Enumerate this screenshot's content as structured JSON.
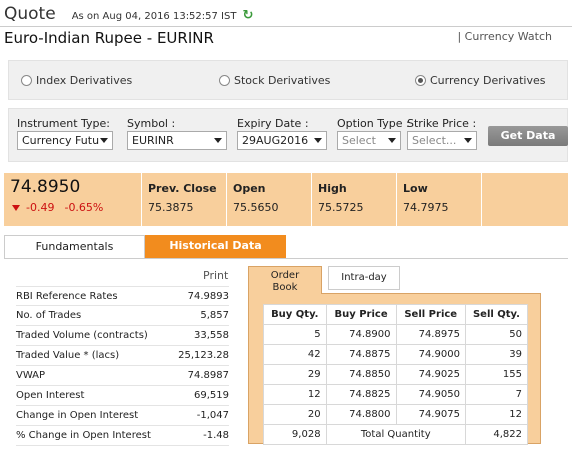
{
  "header": {
    "title": "Quote",
    "as_on": "As on Aug 04, 2016 13:52:57 IST",
    "instrument_name": "Euro-Indian Rupee - EURINR",
    "currency_watch": "| Currency Watch"
  },
  "segments": [
    {
      "label": "Index Derivatives",
      "selected": false
    },
    {
      "label": "Stock Derivatives",
      "selected": false
    },
    {
      "label": "Currency Derivatives",
      "selected": true
    }
  ],
  "filters": {
    "instrument_type": {
      "label": "Instrument Type:",
      "value": "Currency Futu"
    },
    "symbol": {
      "label": "Symbol :",
      "value": "EURINR"
    },
    "expiry_date": {
      "label": "Expiry Date :",
      "value": "29AUG2016"
    },
    "option_type": {
      "label": "Option Type :",
      "value": "Select"
    },
    "strike_price": {
      "label": "Strike Price :",
      "value": "Select..."
    },
    "get_data": "Get Data"
  },
  "quote": {
    "price": "74.8950",
    "change": "-0.49",
    "change_pct": "-0.65%",
    "prev_close": {
      "label": "Prev. Close",
      "value": "75.3875"
    },
    "open": {
      "label": "Open",
      "value": "75.5650"
    },
    "high": {
      "label": "High",
      "value": "75.5725"
    },
    "low": {
      "label": "Low",
      "value": "74.7975"
    }
  },
  "tabs": {
    "fundamentals": "Fundamentals",
    "historical": "Historical Data"
  },
  "print_label": "Print",
  "fundamentals": [
    {
      "label": "RBI Reference Rates",
      "value": "74.9893"
    },
    {
      "label": "No. of Trades",
      "value": "5,857"
    },
    {
      "label": "Traded Volume (contracts)",
      "value": "33,558"
    },
    {
      "label": "Traded Value * (lacs)",
      "value": "25,123.28"
    },
    {
      "label": "VWAP",
      "value": "74.8987"
    },
    {
      "label": "Open Interest",
      "value": "69,519"
    },
    {
      "label": "Change in Open Interest",
      "value": "-1,047"
    },
    {
      "label": "% Change in Open Interest",
      "value": "-1.48"
    }
  ],
  "order_book": {
    "tab_order_book_line1": "Order",
    "tab_order_book_line2": "Book",
    "tab_intraday": "Intra-day",
    "columns": [
      "Buy Qty.",
      "Buy Price",
      "Sell Price",
      "Sell Qty."
    ],
    "rows": [
      [
        "5",
        "74.8900",
        "74.8975",
        "50"
      ],
      [
        "42",
        "74.8875",
        "74.9000",
        "39"
      ],
      [
        "29",
        "74.8850",
        "74.9025",
        "155"
      ],
      [
        "12",
        "74.8825",
        "74.9050",
        "7"
      ],
      [
        "20",
        "74.8800",
        "74.9075",
        "12"
      ]
    ],
    "total_buy": "9,028",
    "total_label": "Total Quantity",
    "total_sell": "4,822"
  }
}
